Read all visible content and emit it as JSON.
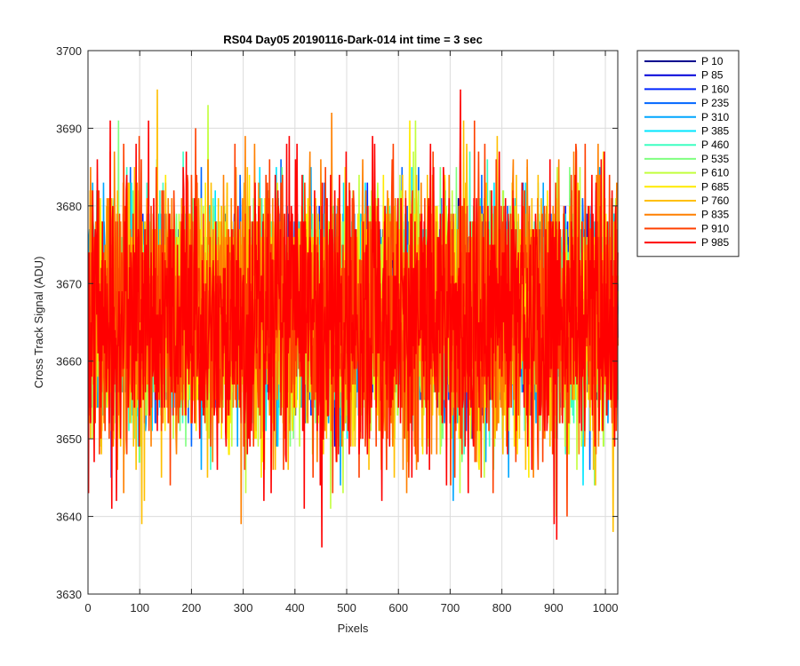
{
  "chart_data": {
    "type": "line",
    "title": "RS04 Day05 20190116-Dark-014 int time = 3 sec",
    "xlabel": "Pixels",
    "ylabel": "Cross Track Signal (ADU)",
    "xlim": [
      0,
      1024
    ],
    "ylim": [
      3630,
      3700
    ],
    "xticks": [
      0,
      100,
      200,
      300,
      400,
      500,
      600,
      700,
      800,
      900,
      1000
    ],
    "yticks": [
      3630,
      3640,
      3650,
      3660,
      3670,
      3680,
      3690,
      3700
    ],
    "grid": true,
    "legend_position": "outside-top-right",
    "noise": {
      "center": 3666,
      "spread": 9,
      "min": 3636,
      "max": 3695,
      "points_per_series": 1024
    },
    "series": [
      {
        "name": "P 10",
        "color": "#00008f"
      },
      {
        "name": "P 85",
        "color": "#0000d9"
      },
      {
        "name": "P 160",
        "color": "#0026ff"
      },
      {
        "name": "P 235",
        "color": "#0066ff"
      },
      {
        "name": "P 310",
        "color": "#00a6ff"
      },
      {
        "name": "P 385",
        "color": "#00e6ff"
      },
      {
        "name": "P 460",
        "color": "#3dffc2"
      },
      {
        "name": "P 535",
        "color": "#80ff80"
      },
      {
        "name": "P 610",
        "color": "#c2ff3d"
      },
      {
        "name": "P 685",
        "color": "#ffea00"
      },
      {
        "name": "P 760",
        "color": "#ffbf00"
      },
      {
        "name": "P 835",
        "color": "#ff8000"
      },
      {
        "name": "P 910",
        "color": "#ff4000"
      },
      {
        "name": "P 985",
        "color": "#ff0000"
      }
    ]
  }
}
